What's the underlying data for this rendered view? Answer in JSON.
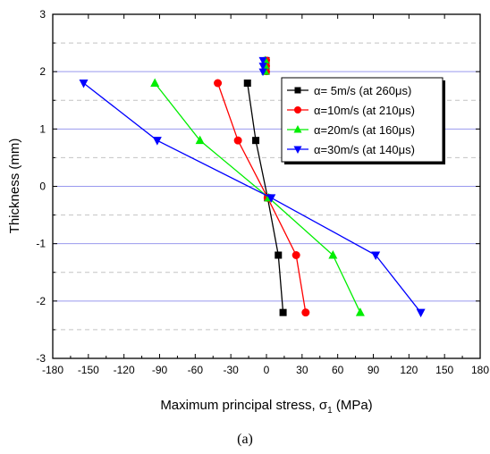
{
  "caption": "(a)",
  "chart_data": {
    "type": "line",
    "xlabel": "Maximum principal stress, σ",
    "xlabel_sub": "1",
    "xlabel_unit": " (MPa)",
    "ylabel": "Thickness (mm)",
    "xlim": [
      -180,
      180
    ],
    "ylim": [
      -3,
      3
    ],
    "xticks": [
      -180,
      -150,
      -120,
      -90,
      -60,
      -30,
      0,
      30,
      60,
      90,
      120,
      150,
      180
    ],
    "yticks": [
      -3,
      -2,
      -1,
      0,
      1,
      2,
      3
    ],
    "grid": "horizontal",
    "legend_position": "center-right",
    "series": [
      {
        "name": "α=  5m/s (at 260μs)",
        "color": "#000000",
        "marker": "square",
        "x": [
          -16,
          -9,
          1,
          10,
          14,
          0,
          0,
          0
        ],
        "y": [
          1.8,
          0.8,
          -0.2,
          -1.2,
          -2.2,
          2.2,
          2.1,
          2.0
        ]
      },
      {
        "name": "α=10m/s (at 210μs)",
        "color": "#ff0000",
        "marker": "circle",
        "x": [
          -41,
          -24,
          1,
          25,
          33,
          0,
          0,
          0
        ],
        "y": [
          1.8,
          0.8,
          -0.2,
          -1.2,
          -2.2,
          2.2,
          2.1,
          2.0
        ]
      },
      {
        "name": "α=20m/s (at 160μs)",
        "color": "#00ee00",
        "marker": "triangle-up",
        "x": [
          -94,
          -56,
          2,
          56,
          79,
          -1,
          -1,
          -1
        ],
        "y": [
          1.8,
          0.8,
          -0.2,
          -1.2,
          -2.2,
          2.2,
          2.1,
          2.0
        ]
      },
      {
        "name": "α=30m/s (at 140μs)",
        "color": "#0000ff",
        "marker": "triangle-down",
        "x": [
          -154,
          -92,
          4,
          92,
          130,
          -3,
          -3,
          -3
        ],
        "y": [
          1.8,
          0.8,
          -0.2,
          -1.2,
          -2.2,
          2.2,
          2.1,
          2.0
        ]
      }
    ]
  }
}
